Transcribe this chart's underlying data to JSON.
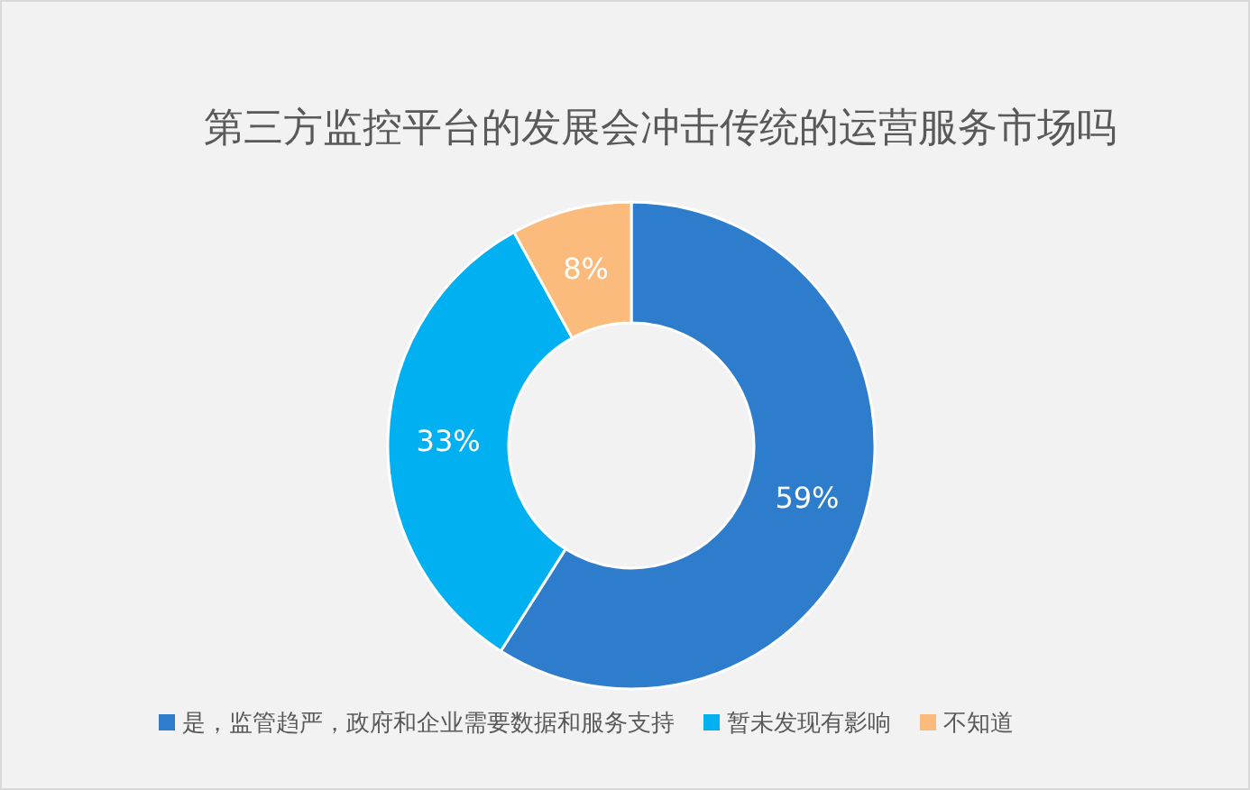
{
  "chart_data": {
    "type": "donut",
    "title": "第三方监控平台的发展会冲击传统的运营服务市场吗",
    "categories": [
      "是，监管趋严，政府和企业需要数据和服务支持",
      "暂未发现有影响",
      "不知道"
    ],
    "values": [
      59,
      33,
      8
    ],
    "colors": [
      "#2e7dcc",
      "#00b0f0",
      "#fabb7c"
    ],
    "value_labels": [
      "59%",
      "33%",
      "8%"
    ],
    "legend": "bottom"
  }
}
